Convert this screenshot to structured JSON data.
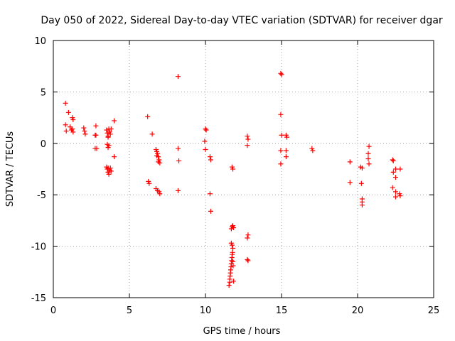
{
  "chart_data": {
    "type": "scatter",
    "title": "Day 050 of 2022, Sidereal Day-to-day VTEC variation (SDTVAR) for receiver dgar",
    "xlabel": "GPS time / hours",
    "ylabel": "SDTVAR / TECUs",
    "xlim": [
      0,
      25
    ],
    "ylim": [
      -15,
      10
    ],
    "xticks": [
      0,
      5,
      10,
      15,
      20,
      25
    ],
    "yticks": [
      -15,
      -10,
      -5,
      0,
      5,
      10
    ],
    "xtick_labels": [
      "0",
      "5",
      "10",
      "15",
      "20",
      "25"
    ],
    "ytick_labels": [
      "-15",
      "-10",
      "-5",
      "0",
      "5",
      "10"
    ],
    "grid": true,
    "marker": "plus",
    "color": "#ff0000",
    "series": [
      {
        "name": "SDTVAR",
        "points": [
          [
            0.8,
            3.9
          ],
          [
            1.0,
            3.0
          ],
          [
            0.8,
            1.8
          ],
          [
            0.85,
            1.2
          ],
          [
            1.1,
            1.6
          ],
          [
            1.25,
            2.5
          ],
          [
            1.3,
            2.3
          ],
          [
            1.2,
            1.3
          ],
          [
            1.3,
            1.1
          ],
          [
            1.25,
            1.4
          ],
          [
            2.0,
            1.5
          ],
          [
            2.05,
            1.2
          ],
          [
            2.1,
            0.9
          ],
          [
            2.8,
            1.7
          ],
          [
            2.75,
            0.8
          ],
          [
            2.8,
            0.8
          ],
          [
            2.75,
            -0.5
          ],
          [
            2.85,
            -0.5
          ],
          [
            3.5,
            1.3
          ],
          [
            3.55,
            1.0
          ],
          [
            3.6,
            0.7
          ],
          [
            3.65,
            1.4
          ],
          [
            3.7,
            1.1
          ],
          [
            3.75,
            0.9
          ],
          [
            3.8,
            1.4
          ],
          [
            3.6,
            0.6
          ],
          [
            3.55,
            -0.1
          ],
          [
            3.6,
            -0.4
          ],
          [
            3.65,
            -0.2
          ],
          [
            4.0,
            2.2
          ],
          [
            4.0,
            -1.3
          ],
          [
            3.5,
            -2.3
          ],
          [
            3.55,
            -2.5
          ],
          [
            3.6,
            -2.8
          ],
          [
            3.65,
            -3.0
          ],
          [
            3.7,
            -2.6
          ],
          [
            3.75,
            -2.4
          ],
          [
            3.8,
            -2.7
          ],
          [
            3.6,
            -2.4
          ],
          [
            6.2,
            2.6
          ],
          [
            6.25,
            -3.7
          ],
          [
            6.3,
            -3.9
          ],
          [
            6.5,
            0.9
          ],
          [
            6.75,
            -0.6
          ],
          [
            6.8,
            -0.8
          ],
          [
            6.85,
            -1.0
          ],
          [
            6.9,
            -1.3
          ],
          [
            6.95,
            -1.6
          ],
          [
            7.0,
            -1.9
          ],
          [
            6.8,
            -1.2
          ],
          [
            6.9,
            -1.8
          ],
          [
            6.75,
            -4.4
          ],
          [
            6.85,
            -4.6
          ],
          [
            6.95,
            -4.7
          ],
          [
            7.0,
            -4.9
          ],
          [
            8.2,
            6.5
          ],
          [
            8.2,
            -0.5
          ],
          [
            8.25,
            -1.7
          ],
          [
            8.2,
            -4.6
          ],
          [
            10.0,
            1.4
          ],
          [
            10.05,
            1.3
          ],
          [
            9.95,
            0.2
          ],
          [
            10.0,
            -0.6
          ],
          [
            10.3,
            -1.3
          ],
          [
            10.35,
            -1.6
          ],
          [
            10.3,
            -4.9
          ],
          [
            10.35,
            -6.6
          ],
          [
            11.55,
            -13.8
          ],
          [
            11.6,
            -13.5
          ],
          [
            11.6,
            -13.2
          ],
          [
            11.62,
            -12.9
          ],
          [
            11.64,
            -12.6
          ],
          [
            11.66,
            -12.3
          ],
          [
            11.68,
            -12.0
          ],
          [
            11.7,
            -11.7
          ],
          [
            11.72,
            -11.4
          ],
          [
            11.74,
            -11.1
          ],
          [
            11.76,
            -10.8
          ],
          [
            11.78,
            -10.6
          ],
          [
            11.8,
            -11.5
          ],
          [
            11.82,
            -11.9
          ],
          [
            11.85,
            -13.4
          ],
          [
            11.7,
            -9.7
          ],
          [
            11.75,
            -9.9
          ],
          [
            11.8,
            -10.2
          ],
          [
            11.7,
            -8.3
          ],
          [
            11.75,
            -8.1
          ],
          [
            11.8,
            -8.0
          ],
          [
            11.85,
            -8.2
          ],
          [
            11.75,
            -2.3
          ],
          [
            11.8,
            -2.5
          ],
          [
            12.75,
            0.7
          ],
          [
            12.8,
            0.4
          ],
          [
            12.75,
            -0.2
          ],
          [
            12.8,
            -8.9
          ],
          [
            12.75,
            -9.2
          ],
          [
            12.75,
            -11.3
          ],
          [
            12.8,
            -11.4
          ],
          [
            14.95,
            6.8
          ],
          [
            15.0,
            6.7
          ],
          [
            14.95,
            2.8
          ],
          [
            15.0,
            0.8
          ],
          [
            14.95,
            -0.7
          ],
          [
            15.3,
            0.8
          ],
          [
            15.35,
            0.6
          ],
          [
            15.3,
            -0.7
          ],
          [
            15.3,
            -1.3
          ],
          [
            14.95,
            -2.0
          ],
          [
            17.0,
            -0.5
          ],
          [
            17.05,
            -0.7
          ],
          [
            19.5,
            -1.8
          ],
          [
            19.5,
            -3.8
          ],
          [
            20.2,
            -2.3
          ],
          [
            20.3,
            -2.4
          ],
          [
            20.25,
            -3.9
          ],
          [
            20.3,
            -5.4
          ],
          [
            20.3,
            -5.7
          ],
          [
            20.3,
            -6.0
          ],
          [
            20.75,
            -0.3
          ],
          [
            20.7,
            -1.0
          ],
          [
            20.7,
            -1.5
          ],
          [
            20.75,
            -2.0
          ],
          [
            22.3,
            -1.6
          ],
          [
            22.35,
            -1.7
          ],
          [
            22.35,
            -2.8
          ],
          [
            22.5,
            -2.5
          ],
          [
            22.8,
            -2.5
          ],
          [
            22.5,
            -3.3
          ],
          [
            22.3,
            -4.3
          ],
          [
            22.5,
            -4.7
          ],
          [
            22.75,
            -4.9
          ],
          [
            22.8,
            -5.1
          ],
          [
            22.5,
            -5.2
          ]
        ]
      }
    ]
  }
}
